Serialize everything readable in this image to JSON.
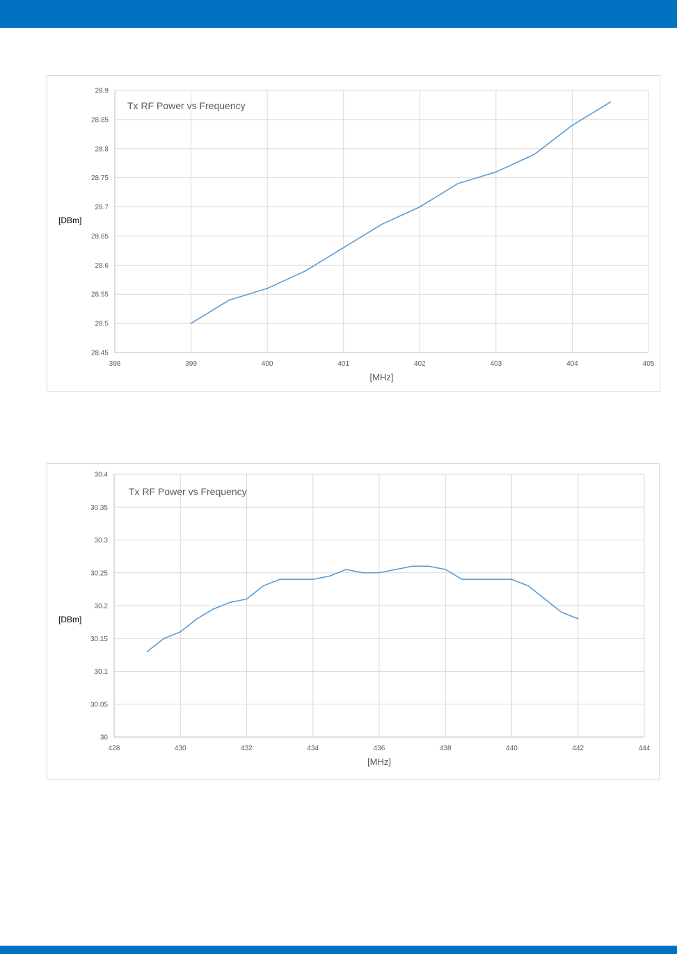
{
  "theme": {
    "accent": "#0070C0",
    "line": "#5B9BD5",
    "grid": "#D9D9D9",
    "axis": "#BFBFBF"
  },
  "chart_data": [
    {
      "type": "line",
      "title": "Tx RF Power vs Frequency",
      "xlabel": "[MHz]",
      "ylabel": "[DBm]",
      "xlim": [
        398,
        405
      ],
      "ylim": [
        28.45,
        28.9
      ],
      "xticks": [
        "398",
        "399",
        "400",
        "401",
        "402",
        "403",
        "404",
        "405"
      ],
      "yticks": [
        "28.45",
        "28.5",
        "28.55",
        "28.6",
        "28.65",
        "28.7",
        "28.75",
        "28.8",
        "28.85",
        "28.9"
      ],
      "grid": true,
      "series": [
        {
          "x": [
            399,
            399.5,
            400,
            400.5,
            401,
            401.5,
            402,
            402.5,
            403,
            403.5,
            404,
            404.5
          ],
          "y": [
            28.5,
            28.54,
            28.56,
            28.59,
            28.63,
            28.67,
            28.7,
            28.74,
            28.76,
            28.79,
            28.84,
            28.88
          ]
        }
      ]
    },
    {
      "type": "line",
      "title": "Tx RF Power vs Frequency",
      "xlabel": "[MHz]",
      "ylabel": "[DBm]",
      "xlim": [
        428,
        444
      ],
      "ylim": [
        30,
        30.4
      ],
      "xticks": [
        "428",
        "430",
        "432",
        "434",
        "436",
        "438",
        "440",
        "442",
        "444"
      ],
      "yticks": [
        "30",
        "30.05",
        "30.1",
        "30.15",
        "30.2",
        "30.25",
        "30.3",
        "30.35",
        "30.4"
      ],
      "grid": true,
      "series": [
        {
          "x": [
            429,
            429.5,
            430,
            430.5,
            431,
            431.5,
            432,
            432.5,
            433,
            433.5,
            434,
            434.5,
            435,
            435.5,
            436,
            436.5,
            437,
            437.5,
            438,
            438.5,
            439,
            439.5,
            440,
            440.5,
            441,
            441.5,
            442
          ],
          "y": [
            30.13,
            30.15,
            30.16,
            30.18,
            30.195,
            30.205,
            30.21,
            30.23,
            30.24,
            30.24,
            30.24,
            30.245,
            30.255,
            30.25,
            30.25,
            30.255,
            30.26,
            30.26,
            30.255,
            30.24,
            30.24,
            30.24,
            30.24,
            30.23,
            30.21,
            30.19,
            30.18
          ]
        }
      ]
    }
  ]
}
